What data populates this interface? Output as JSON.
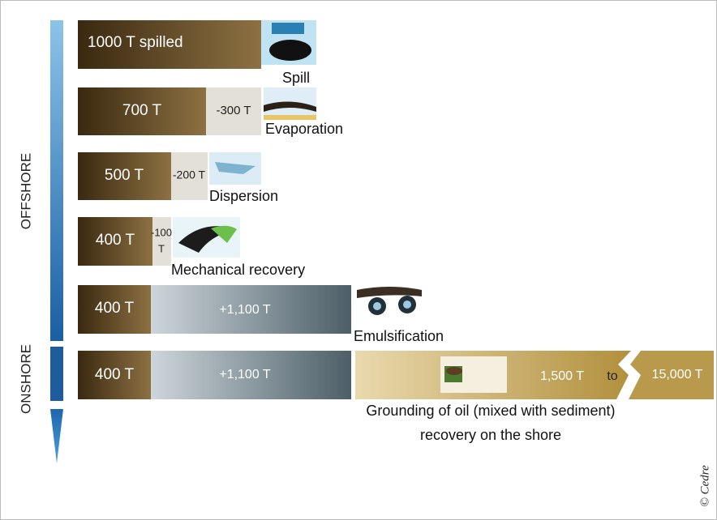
{
  "sections": {
    "offshore": "OFFSHORE",
    "onshore": "ONSHORE"
  },
  "steps": [
    {
      "remaining": "1000 T spilled",
      "caption": "Spill"
    },
    {
      "remaining": "700 T",
      "change": "-300 T",
      "caption": "Evaporation"
    },
    {
      "remaining": "500 T",
      "change": "-200 T",
      "caption": "Dispersion"
    },
    {
      "remaining": "400 T",
      "change_lines": [
        "-100",
        "T"
      ],
      "caption": "Mechanical recovery"
    },
    {
      "remaining": "400 T",
      "change": "+1,100 T",
      "caption": "Emulsification"
    },
    {
      "remaining": "400 T",
      "change": "+1,100 T"
    }
  ],
  "grounding": {
    "from": "1,500 T",
    "to_word": "to",
    "to": "15,000 T",
    "caption_lines": [
      "Grounding of oil (mixed with sediment)",
      "recovery on the shore"
    ]
  },
  "credit": "© Cedre"
}
